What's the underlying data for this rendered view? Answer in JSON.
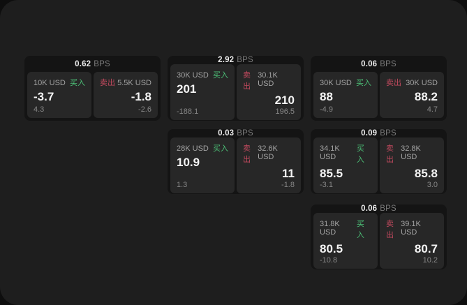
{
  "page": {
    "bps_unit": "BPS",
    "buy_label": "买入",
    "sell_label": "卖出"
  },
  "colors": {
    "panel_background": "#1e1e1e",
    "card_background": "#141414",
    "tile_background": "#272727",
    "buy_green": "#4cc077",
    "sell_red": "#c1495e",
    "value_white": "#f4f4f4",
    "muted_gray": "#878787"
  },
  "cards": [
    {
      "row": 0,
      "col": 0,
      "bps": "0.62",
      "buy": {
        "amount": "10K USD",
        "value": "-3.7",
        "sub": "4.3"
      },
      "sell": {
        "amount": "5.5K USD",
        "value": "-1.8",
        "sub": "-2.6"
      }
    },
    {
      "row": 0,
      "col": 1,
      "bps": "2.92",
      "buy": {
        "amount": "30K USD",
        "value": "201",
        "sub": "-188.1"
      },
      "sell": {
        "amount": "30.1K USD",
        "value": "210",
        "sub": "196.5"
      }
    },
    {
      "row": 0,
      "col": 2,
      "bps": "0.06",
      "buy": {
        "amount": "30K USD",
        "value": "88",
        "sub": "-4.9"
      },
      "sell": {
        "amount": "30K USD",
        "value": "88.2",
        "sub": "4.7"
      }
    },
    {
      "row": 1,
      "col": 1,
      "bps": "0.03",
      "buy": {
        "amount": "28K USD",
        "value": "10.9",
        "sub": "1.3"
      },
      "sell": {
        "amount": "32.6K USD",
        "value": "11",
        "sub": "-1.8"
      }
    },
    {
      "row": 1,
      "col": 2,
      "bps": "0.09",
      "buy": {
        "amount": "34.1K USD",
        "value": "85.5",
        "sub": "-3.1"
      },
      "sell": {
        "amount": "32.8K USD",
        "value": "85.8",
        "sub": "3.0"
      }
    },
    {
      "row": 2,
      "col": 2,
      "bps": "0.06",
      "buy": {
        "amount": "31.8K USD",
        "value": "80.5",
        "sub": "-10.8"
      },
      "sell": {
        "amount": "39.1K USD",
        "value": "80.7",
        "sub": "10.2"
      }
    }
  ]
}
